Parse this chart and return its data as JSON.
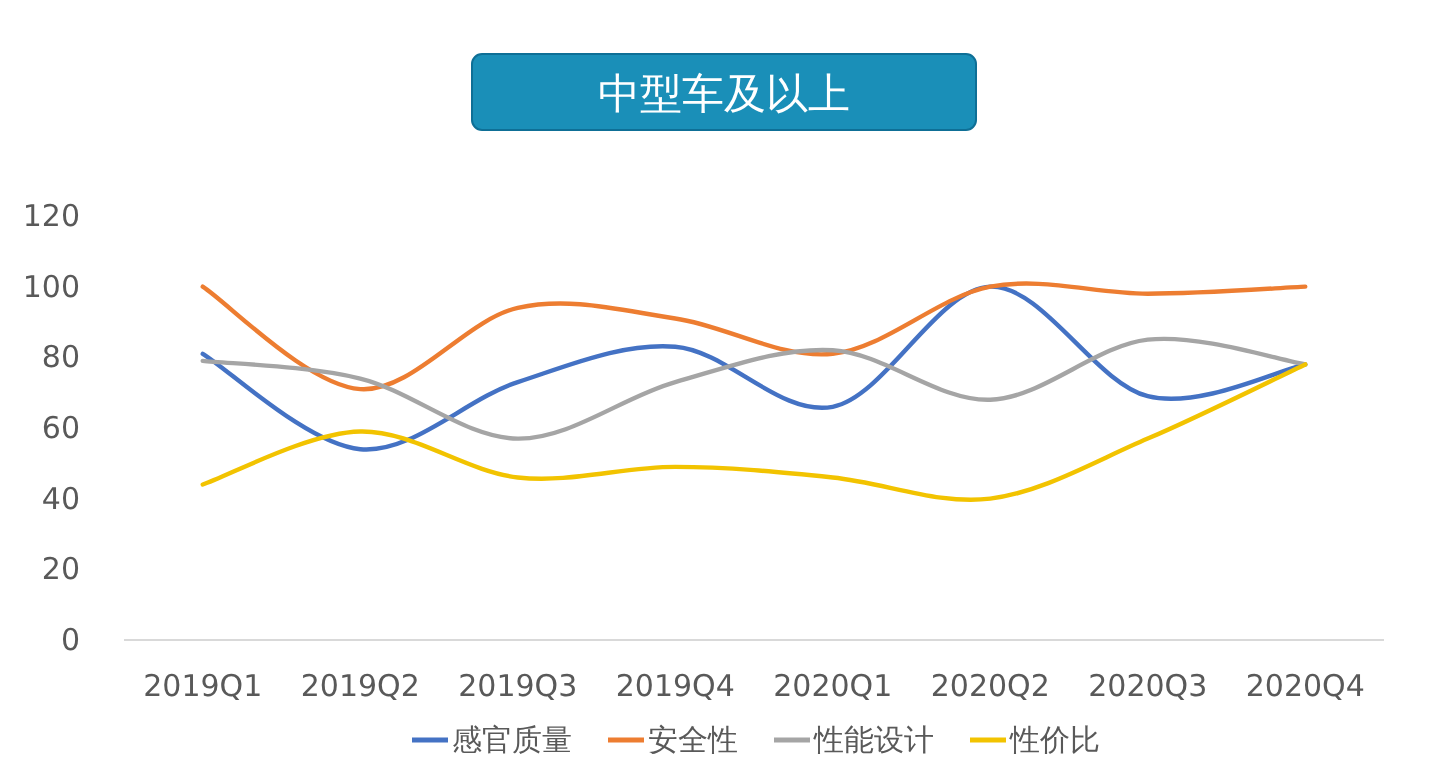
{
  "chart_data": {
    "type": "line",
    "title": "中型车及以上",
    "categories": [
      "2019Q1",
      "2019Q2",
      "2019Q3",
      "2019Q4",
      "2020Q1",
      "2020Q2",
      "2020Q3",
      "2020Q4"
    ],
    "series": [
      {
        "name": "感官质量",
        "color": "#4472c4",
        "values": [
          81,
          54,
          73,
          83,
          66,
          100,
          69,
          78
        ]
      },
      {
        "name": "安全性",
        "color": "#ed7d31",
        "values": [
          100,
          71,
          94,
          91,
          81,
          100,
          98,
          100
        ]
      },
      {
        "name": "性能设计",
        "color": "#a5a5a5",
        "values": [
          79,
          74,
          57,
          73,
          82,
          68,
          85,
          78
        ]
      },
      {
        "name": "性价比",
        "color": "#f2c300",
        "values": [
          44,
          59,
          46,
          49,
          46,
          40,
          57,
          78
        ]
      }
    ],
    "ylim": [
      0,
      120
    ],
    "yticks": [
      0,
      20,
      40,
      60,
      80,
      100,
      120
    ],
    "grid": false,
    "legend": "bottom",
    "line_style": "solid",
    "marker": "none"
  }
}
